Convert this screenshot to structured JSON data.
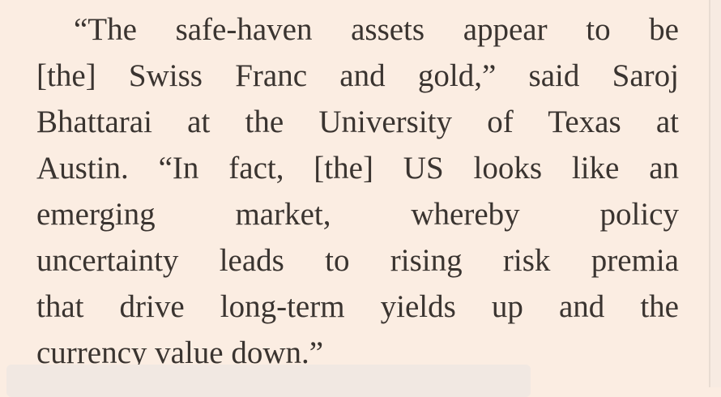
{
  "paragraph": {
    "lines": [
      "“The safe-haven assets appear to be",
      "[the] Swiss Franc and gold,” said Saroj",
      "Bhattarai at the University of Texas at",
      "Austin. “In fact, [the] US looks like an",
      "emerging market, whereby policy",
      "uncertainty leads to rising risk premia",
      "that drive long-term yields up and the",
      "currency value down.”"
    ]
  }
}
